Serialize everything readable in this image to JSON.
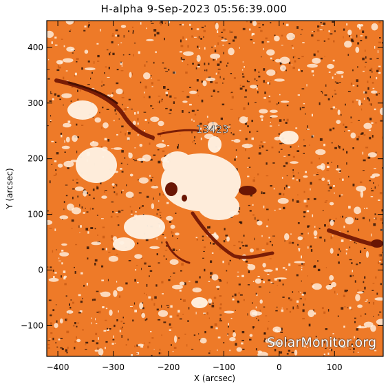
{
  "title": "H-alpha  9-Sep-2023 05:56:39.000",
  "colors": {
    "base": "#ee7a28",
    "dark": "#1a0a04",
    "bright": "#fff3e4",
    "filament": "#7a1d06"
  },
  "image": {
    "active_region_label": "13423",
    "watermark": "SolarMonitor.org"
  },
  "x_axis": {
    "label": "X (arcsec)",
    "range": [
      -420,
      188
    ],
    "ticks": [
      {
        "value": -400,
        "label": "−400"
      },
      {
        "value": -300,
        "label": "−300"
      },
      {
        "value": -200,
        "label": "−200"
      },
      {
        "value": -100,
        "label": "−100"
      },
      {
        "value": 0,
        "label": "0"
      },
      {
        "value": 100,
        "label": "100"
      }
    ]
  },
  "y_axis": {
    "label": "Y (arcsec)",
    "range": [
      -155,
      448
    ],
    "ticks": [
      {
        "value": -100,
        "label": "−100"
      },
      {
        "value": 0,
        "label": "0"
      },
      {
        "value": 100,
        "label": "100"
      },
      {
        "value": 200,
        "label": "200"
      },
      {
        "value": 300,
        "label": "300"
      },
      {
        "value": 400,
        "label": "400"
      }
    ]
  }
}
